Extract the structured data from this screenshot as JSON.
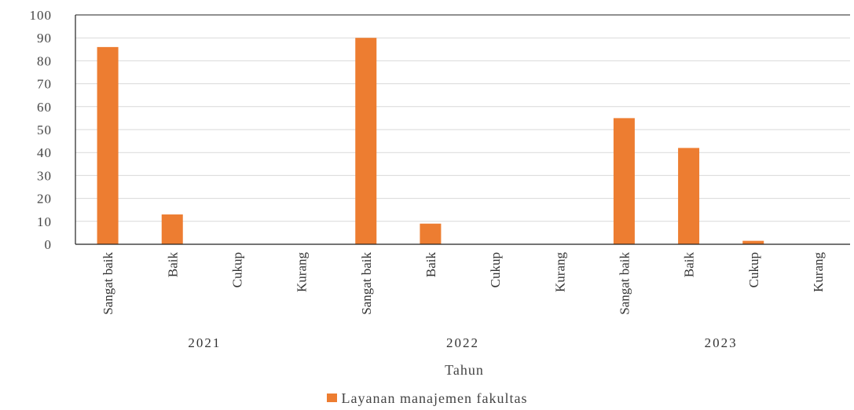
{
  "chart_data": {
    "type": "bar",
    "title": "",
    "xlabel": "Tahun",
    "ylabel": "",
    "ylim": [
      0,
      100
    ],
    "y_ticks": [
      0,
      10,
      20,
      30,
      40,
      50,
      60,
      70,
      80,
      90,
      100
    ],
    "grid": true,
    "legend_position": "bottom-center",
    "colors": {
      "bar": "#ED7D31",
      "grid": "#D9D9D9",
      "axis": "#222222"
    },
    "groups": [
      {
        "label": "2021",
        "categories": [
          "Sangat baik",
          "Baik",
          "Cukup",
          "Kurang"
        ],
        "values": [
          86,
          13,
          0,
          0
        ]
      },
      {
        "label": "2022",
        "categories": [
          "Sangat baik",
          "Baik",
          "Cukup",
          "Kurang"
        ],
        "values": [
          90,
          9,
          0,
          0
        ]
      },
      {
        "label": "2023",
        "categories": [
          "Sangat baik",
          "Baik",
          "Cukup",
          "Kurang"
        ],
        "values": [
          55,
          42,
          1.5,
          0
        ]
      }
    ],
    "series": [
      {
        "name": "Layanan manajemen fakultas"
      }
    ]
  }
}
